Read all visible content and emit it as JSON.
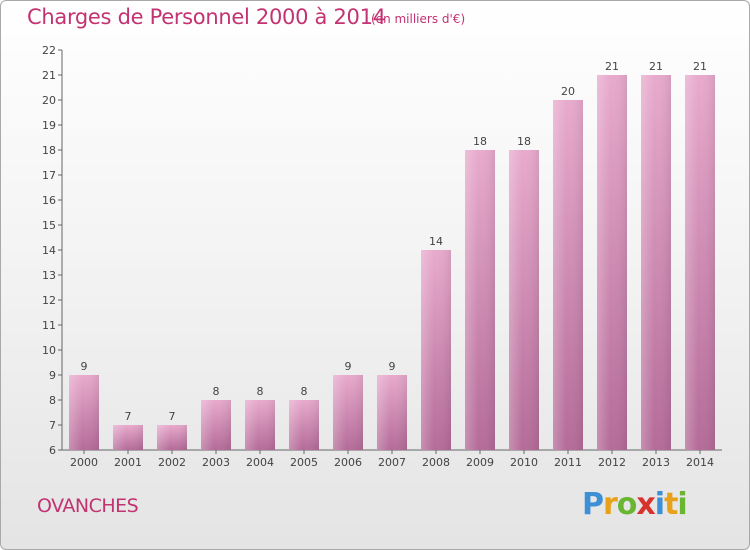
{
  "header": {
    "title": "Charges de Personnel 2000 à 2014",
    "subtitle": "(en milliers d'€)"
  },
  "footer": {
    "commune": "OVANCHES",
    "brand_letters": [
      {
        "char": "P",
        "color": "#3d8fd6"
      },
      {
        "char": "r",
        "color": "#e8a21a"
      },
      {
        "char": "o",
        "color": "#6ab632"
      },
      {
        "char": "x",
        "color": "#d8322c"
      },
      {
        "char": "i",
        "color": "#3d8fd6"
      },
      {
        "char": "t",
        "color": "#e8a21a"
      },
      {
        "char": "i",
        "color": "#6ab632"
      }
    ]
  },
  "colors": {
    "title": "#c33271",
    "bar_top": "#e8aacd",
    "bar_bottom": "#b46b98"
  },
  "chart_data": {
    "type": "bar",
    "title": "Charges de Personnel 2000 à 2014",
    "subtitle": "(en milliers d'€)",
    "categories": [
      "2000",
      "2001",
      "2002",
      "2003",
      "2004",
      "2005",
      "2006",
      "2007",
      "2008",
      "2009",
      "2010",
      "2011",
      "2012",
      "2013",
      "2014"
    ],
    "values": [
      9,
      7,
      7,
      8,
      8,
      8,
      9,
      9,
      14,
      18,
      18,
      20,
      21,
      21,
      21
    ],
    "ylim": [
      6,
      22
    ],
    "yticks": [
      6,
      7,
      8,
      9,
      10,
      11,
      12,
      13,
      14,
      15,
      16,
      17,
      18,
      19,
      20,
      21,
      22
    ],
    "grid": false,
    "legend": "none"
  }
}
